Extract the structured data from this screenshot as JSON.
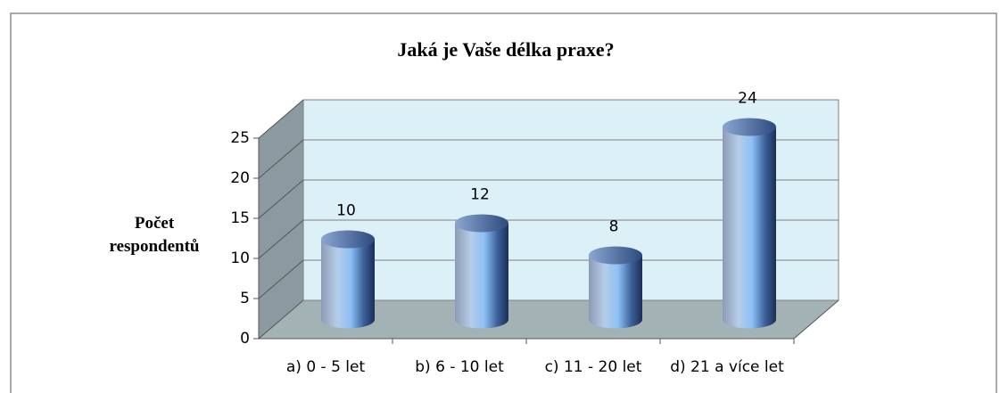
{
  "chart_data": {
    "type": "bar3d",
    "title": "Jaká je Vaše délka praxe?",
    "ylabel": "Počet respondentů",
    "categories": [
      "a) 0 - 5 let",
      "b) 6 - 10 let",
      "c) 11 - 20 let",
      "d) 21 a více let"
    ],
    "values": [
      10,
      12,
      8,
      24
    ],
    "ylim": [
      0,
      25
    ],
    "yticks": [
      0,
      5,
      10,
      15,
      20,
      25
    ],
    "grid": true
  }
}
